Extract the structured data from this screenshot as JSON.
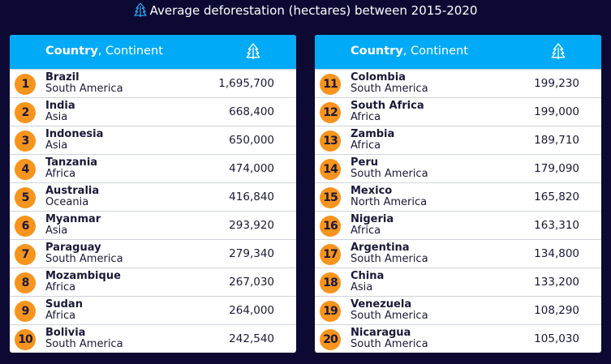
{
  "title": {
    "text": "Average deforestation (hectares) between 2015-2020",
    "icon": "tree-icon"
  },
  "colors": {
    "background": "#0c0a33",
    "header": "#00aaf6",
    "rank_badge": "#f7941d"
  },
  "table_header": {
    "country": "Country",
    "continent": ", Continent",
    "value_icon": "tree-icon"
  },
  "tables": [
    {
      "rows": [
        {
          "rank": "1",
          "country": "Brazil",
          "continent": "South America",
          "value": "1,695,700"
        },
        {
          "rank": "2",
          "country": "India",
          "continent": "Asia",
          "value": "668,400"
        },
        {
          "rank": "3",
          "country": "Indonesia",
          "continent": "Asia",
          "value": "650,000"
        },
        {
          "rank": "4",
          "country": "Tanzania",
          "continent": "Africa",
          "value": "474,000"
        },
        {
          "rank": "5",
          "country": "Australia",
          "continent": "Oceania",
          "value": "416,840"
        },
        {
          "rank": "6",
          "country": "Myanmar",
          "continent": "Asia",
          "value": "293,920"
        },
        {
          "rank": "7",
          "country": "Paraguay",
          "continent": "South America",
          "value": "279,340"
        },
        {
          "rank": "8",
          "country": "Mozambique",
          "continent": "Africa",
          "value": "267,030"
        },
        {
          "rank": "9",
          "country": "Sudan",
          "continent": "Africa",
          "value": "264,000"
        },
        {
          "rank": "10",
          "country": "Bolivia",
          "continent": "South America",
          "value": "242,540"
        }
      ]
    },
    {
      "rows": [
        {
          "rank": "11",
          "country": "Colombia",
          "continent": "South America",
          "value": "199,230"
        },
        {
          "rank": "12",
          "country": "South Africa",
          "continent": "Africa",
          "value": "199,000"
        },
        {
          "rank": "13",
          "country": "Zambia",
          "continent": "Africa",
          "value": "189,710"
        },
        {
          "rank": "14",
          "country": "Peru",
          "continent": "South America",
          "value": "179,090"
        },
        {
          "rank": "15",
          "country": "Mexico",
          "continent": "North America",
          "value": "165,820"
        },
        {
          "rank": "16",
          "country": "Nigeria",
          "continent": "Africa",
          "value": "163,310"
        },
        {
          "rank": "17",
          "country": "Argentina",
          "continent": "South America",
          "value": "134,800"
        },
        {
          "rank": "18",
          "country": "China",
          "continent": "Asia",
          "value": "133,200"
        },
        {
          "rank": "19",
          "country": "Venezuela",
          "continent": "South America",
          "value": "108,290"
        },
        {
          "rank": "20",
          "country": "Nicaragua",
          "continent": "South America",
          "value": "105,030"
        }
      ]
    }
  ]
}
